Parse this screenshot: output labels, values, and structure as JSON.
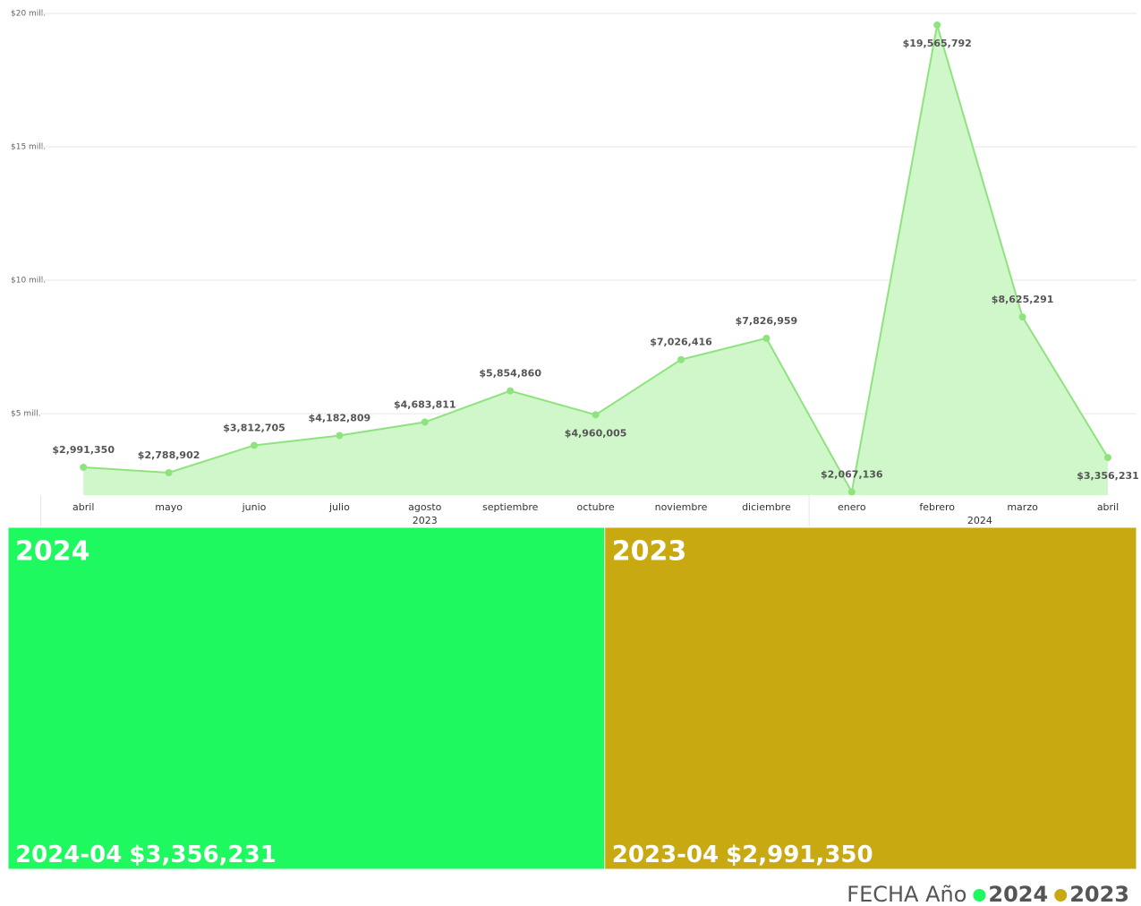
{
  "chart_data": [
    {
      "type": "area",
      "categories": [
        "abril",
        "mayo",
        "junio",
        "julio",
        "agosto",
        "septiembre",
        "octubre",
        "noviembre",
        "diciembre",
        "enero",
        "febrero",
        "marzo",
        "abril"
      ],
      "years": [
        "2023",
        "2023",
        "2023",
        "2023",
        "2023",
        "2023",
        "2023",
        "2023",
        "2023",
        "2024",
        "2024",
        "2024",
        "2024"
      ],
      "values": [
        2991350,
        2788902,
        3812705,
        4182809,
        4683811,
        5854860,
        4960005,
        7026416,
        7826959,
        2067136,
        19565792,
        8625291,
        3356231
      ],
      "value_labels": [
        "$2,991,350",
        "$2,788,902",
        "$3,812,705",
        "$4,182,809",
        "$4,683,811",
        "$5,854,860",
        "$4,960,005",
        "$7,026,416",
        "$7,826,959",
        "$2,067,136",
        "$19,565,792",
        "$8,625,291",
        "$3,356,231"
      ],
      "color": "#8fe37f",
      "ylim": [
        1950000,
        20000000
      ],
      "yticks": [
        {
          "value": 5000000,
          "label": "$5 mill."
        },
        {
          "value": 10000000,
          "label": "$10 mill."
        },
        {
          "value": 15000000,
          "label": "$15 mill."
        },
        {
          "value": 20000000,
          "label": "$20 mill."
        }
      ],
      "grid": true
    },
    {
      "type": "treemap",
      "categories": [
        "2024",
        "2023"
      ],
      "details": [
        "2024-04",
        "2023-04"
      ],
      "values": [
        3356231,
        2991350
      ],
      "value_labels": [
        "$3,356,231",
        "$2,991,350"
      ],
      "colors": [
        "#1ef95f",
        "#c9a912"
      ],
      "legend_title": "FECHA Año"
    }
  ]
}
